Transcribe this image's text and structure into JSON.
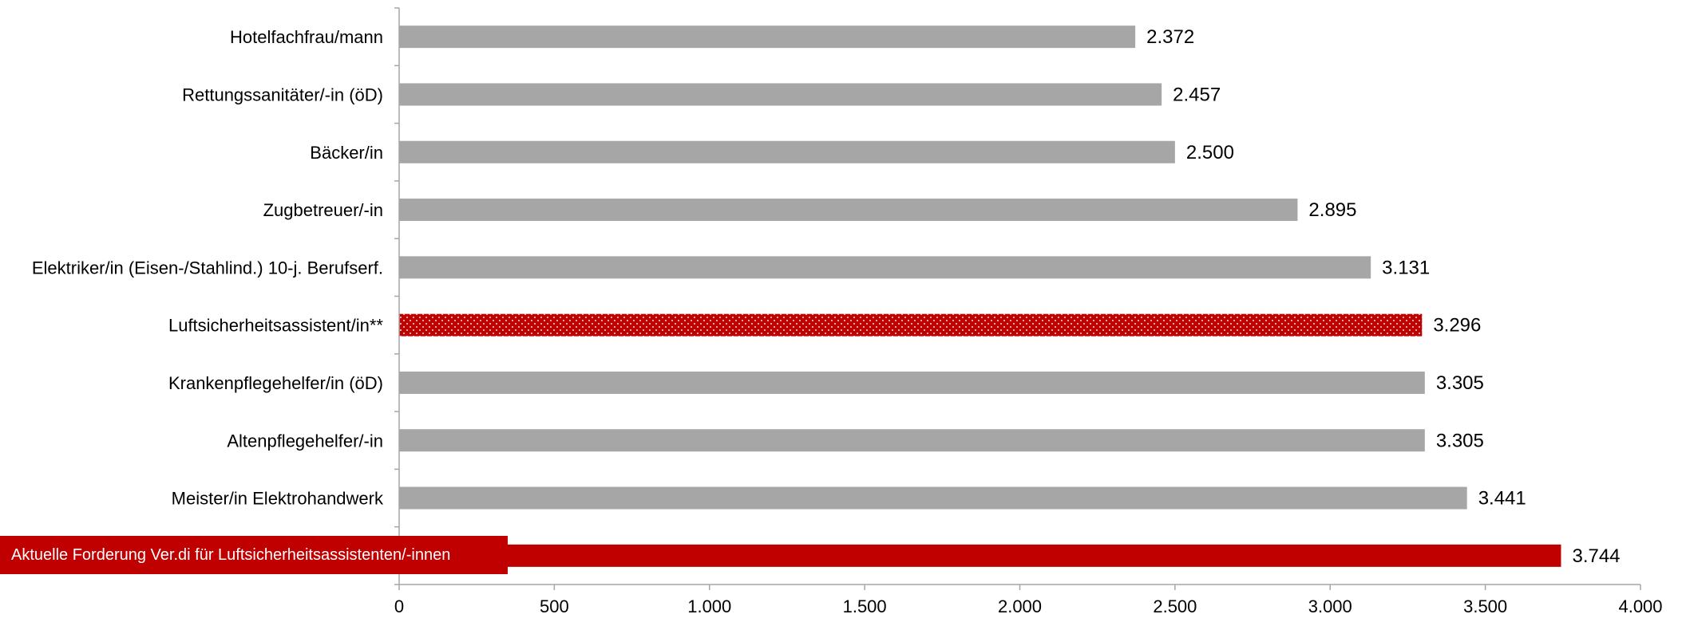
{
  "chart_data": {
    "type": "bar",
    "orientation": "horizontal",
    "categories": [
      "Hotelfachfrau/mann",
      "Rettungssanitäter/-in (öD)",
      "Bäcker/in",
      "Zugbetreuer/-in",
      "Elektriker/in (Eisen-/Stahlind.) 10-j. Berufserf.",
      "Luftsicherheitsassistent/in**",
      "Krankenpflegehelfer/in (öD)",
      "Altenpflegehelfer/-in",
      "Meister/in Elektrohandwerk",
      ""
    ],
    "values": [
      2372,
      2457,
      2500,
      2895,
      3131,
      3296,
      3305,
      3305,
      3441,
      3744
    ],
    "value_labels": [
      "2.372",
      "2.457",
      "2.500",
      "2.895",
      "3.131",
      "3.296",
      "3.305",
      "3.305",
      "3.441",
      "3.744"
    ],
    "bar_styles": [
      "gray",
      "gray",
      "gray",
      "gray",
      "gray",
      "red-dotted",
      "gray",
      "gray",
      "gray",
      "red"
    ],
    "xlim": [
      0,
      4000
    ],
    "x_ticks": [
      0,
      500,
      1000,
      1500,
      2000,
      2500,
      3000,
      3500,
      4000
    ],
    "x_tick_labels": [
      "0",
      "500",
      "1.000",
      "1.500",
      "2.000",
      "2.500",
      "3.000",
      "3.500",
      "4.000"
    ],
    "grid": false,
    "title": "",
    "xlabel": "",
    "ylabel": "",
    "callout": "Aktuelle Forderung Ver.di für Luftsicherheitsassistenten/-innen",
    "colors": {
      "gray": "#a6a6a6",
      "red": "#c00000",
      "dot": "#f2c0c0",
      "axis": "#a6a6a6"
    }
  }
}
